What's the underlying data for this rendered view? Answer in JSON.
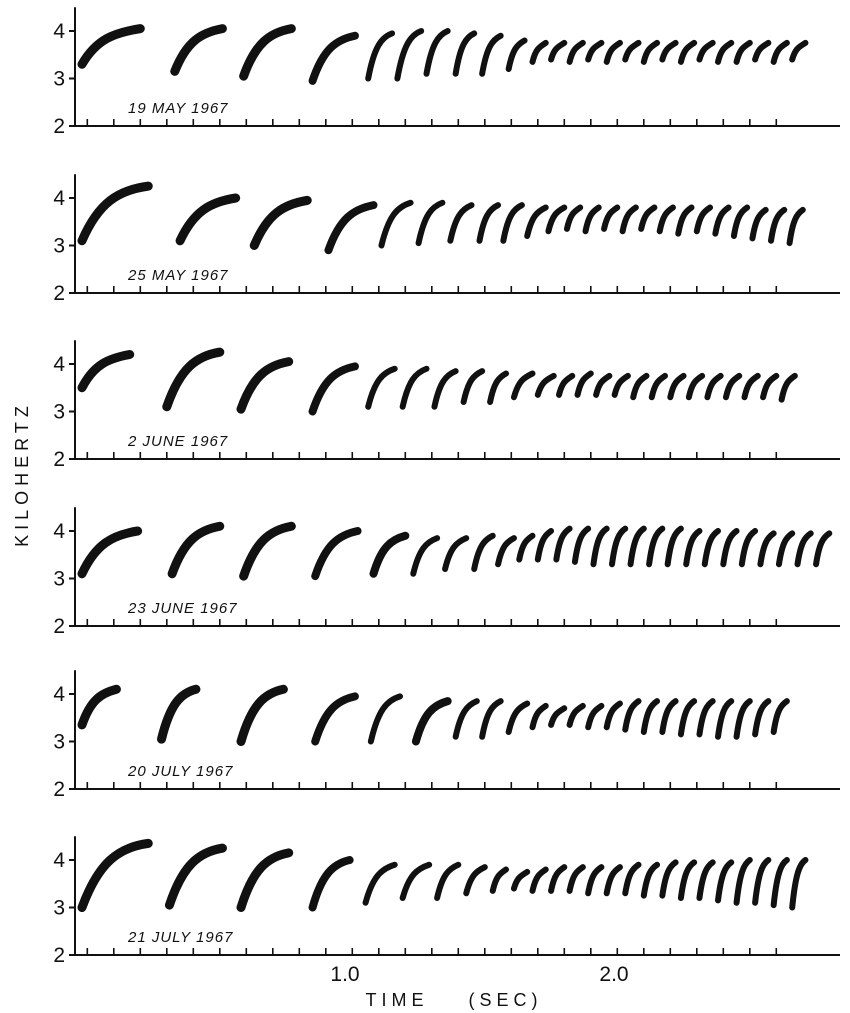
{
  "chart_data": {
    "type": "scatter",
    "description_units": {
      "x": "sec",
      "y": "kHz"
    },
    "xlabel": "TIME    (SEC)",
    "ylabel": "KILOHERTZ",
    "x_tick_labels": [
      {
        "value": 1.0,
        "label": "1.0"
      },
      {
        "value": 2.0,
        "label": "2.0"
      }
    ],
    "xlim": [
      -0.2,
      2.8
    ],
    "ylim": [
      2,
      4.5
    ],
    "y_ticks": [
      2,
      3,
      4
    ],
    "grid": false,
    "panels": [
      {
        "date": "19  MAY  1967",
        "notes": [
          [
            0.0,
            0.22,
            3.3,
            4.05
          ],
          [
            0.35,
            0.53,
            3.15,
            4.05
          ],
          [
            0.61,
            0.79,
            3.05,
            4.05
          ],
          [
            0.87,
            1.03,
            2.95,
            3.9
          ],
          [
            1.08,
            1.17,
            3.0,
            3.95
          ],
          [
            1.19,
            1.28,
            3.0,
            4.0
          ],
          [
            1.3,
            1.38,
            3.1,
            4.0
          ],
          [
            1.41,
            1.48,
            3.1,
            3.95
          ],
          [
            1.51,
            1.58,
            3.1,
            3.9
          ],
          [
            1.61,
            1.67,
            3.2,
            3.8
          ],
          [
            1.7,
            1.75,
            3.35,
            3.75
          ],
          [
            1.77,
            1.82,
            3.4,
            3.75
          ],
          [
            1.84,
            1.89,
            3.35,
            3.75
          ],
          [
            1.91,
            1.96,
            3.4,
            3.75
          ],
          [
            1.98,
            2.03,
            3.35,
            3.75
          ],
          [
            2.05,
            2.1,
            3.4,
            3.75
          ],
          [
            2.12,
            2.17,
            3.35,
            3.75
          ],
          [
            2.19,
            2.24,
            3.4,
            3.75
          ],
          [
            2.26,
            2.31,
            3.35,
            3.75
          ],
          [
            2.33,
            2.38,
            3.4,
            3.75
          ],
          [
            2.4,
            2.45,
            3.35,
            3.75
          ],
          [
            2.47,
            2.52,
            3.35,
            3.75
          ],
          [
            2.54,
            2.59,
            3.4,
            3.75
          ],
          [
            2.61,
            2.66,
            3.35,
            3.75
          ],
          [
            2.68,
            2.73,
            3.4,
            3.75
          ]
        ]
      },
      {
        "date": "25  MAY  1967",
        "notes": [
          [
            0.0,
            0.25,
            3.1,
            4.25
          ],
          [
            0.37,
            0.58,
            3.1,
            4.0
          ],
          [
            0.65,
            0.85,
            3.0,
            3.95
          ],
          [
            0.93,
            1.1,
            2.9,
            3.85
          ],
          [
            1.13,
            1.24,
            3.0,
            3.9
          ],
          [
            1.27,
            1.36,
            3.05,
            3.9
          ],
          [
            1.39,
            1.47,
            3.1,
            3.85
          ],
          [
            1.5,
            1.57,
            3.1,
            3.85
          ],
          [
            1.59,
            1.66,
            3.1,
            3.85
          ],
          [
            1.68,
            1.75,
            3.2,
            3.8
          ],
          [
            1.76,
            1.82,
            3.3,
            3.8
          ],
          [
            1.83,
            1.88,
            3.35,
            3.8
          ],
          [
            1.9,
            1.95,
            3.3,
            3.8
          ],
          [
            1.97,
            2.02,
            3.35,
            3.8
          ],
          [
            2.04,
            2.09,
            3.3,
            3.8
          ],
          [
            2.11,
            2.16,
            3.35,
            3.8
          ],
          [
            2.18,
            2.23,
            3.3,
            3.8
          ],
          [
            2.25,
            2.3,
            3.25,
            3.8
          ],
          [
            2.32,
            2.37,
            3.3,
            3.8
          ],
          [
            2.39,
            2.44,
            3.25,
            3.8
          ],
          [
            2.46,
            2.51,
            3.2,
            3.8
          ],
          [
            2.53,
            2.58,
            3.15,
            3.75
          ],
          [
            2.6,
            2.65,
            3.1,
            3.75
          ],
          [
            2.67,
            2.72,
            3.05,
            3.75
          ]
        ]
      },
      {
        "date": "2  JUNE  1967",
        "notes": [
          [
            0.0,
            0.18,
            3.5,
            4.2
          ],
          [
            0.32,
            0.52,
            3.1,
            4.25
          ],
          [
            0.6,
            0.78,
            3.05,
            4.05
          ],
          [
            0.87,
            1.03,
            3.0,
            3.95
          ],
          [
            1.08,
            1.18,
            3.1,
            3.9
          ],
          [
            1.21,
            1.3,
            3.1,
            3.9
          ],
          [
            1.33,
            1.41,
            3.1,
            3.85
          ],
          [
            1.44,
            1.51,
            3.2,
            3.85
          ],
          [
            1.54,
            1.6,
            3.2,
            3.8
          ],
          [
            1.63,
            1.7,
            3.3,
            3.8
          ],
          [
            1.72,
            1.78,
            3.35,
            3.75
          ],
          [
            1.8,
            1.85,
            3.35,
            3.75
          ],
          [
            1.87,
            1.92,
            3.35,
            3.8
          ],
          [
            1.94,
            1.99,
            3.35,
            3.75
          ],
          [
            2.01,
            2.06,
            3.35,
            3.75
          ],
          [
            2.08,
            2.13,
            3.3,
            3.75
          ],
          [
            2.15,
            2.2,
            3.3,
            3.75
          ],
          [
            2.22,
            2.27,
            3.3,
            3.75
          ],
          [
            2.29,
            2.34,
            3.3,
            3.75
          ],
          [
            2.36,
            2.41,
            3.3,
            3.75
          ],
          [
            2.43,
            2.48,
            3.3,
            3.75
          ],
          [
            2.5,
            2.55,
            3.3,
            3.75
          ],
          [
            2.57,
            2.62,
            3.3,
            3.75
          ],
          [
            2.64,
            2.69,
            3.25,
            3.75
          ]
        ]
      },
      {
        "date": "23  JUNE  1967",
        "notes": [
          [
            0.0,
            0.21,
            3.1,
            4.0
          ],
          [
            0.34,
            0.52,
            3.1,
            4.1
          ],
          [
            0.61,
            0.79,
            3.05,
            4.1
          ],
          [
            0.88,
            1.04,
            3.05,
            4.0
          ],
          [
            1.1,
            1.22,
            3.1,
            3.9
          ],
          [
            1.25,
            1.34,
            3.1,
            3.85
          ],
          [
            1.37,
            1.45,
            3.2,
            3.85
          ],
          [
            1.48,
            1.55,
            3.2,
            3.9
          ],
          [
            1.57,
            1.63,
            3.3,
            3.85
          ],
          [
            1.65,
            1.7,
            3.4,
            3.9
          ],
          [
            1.72,
            1.77,
            3.4,
            4.0
          ],
          [
            1.79,
            1.84,
            3.4,
            4.05
          ],
          [
            1.86,
            1.91,
            3.35,
            4.05
          ],
          [
            1.93,
            1.98,
            3.3,
            4.05
          ],
          [
            2.0,
            2.05,
            3.3,
            4.05
          ],
          [
            2.07,
            2.12,
            3.3,
            4.05
          ],
          [
            2.14,
            2.19,
            3.3,
            4.05
          ],
          [
            2.21,
            2.26,
            3.3,
            4.05
          ],
          [
            2.28,
            2.33,
            3.3,
            4.0
          ],
          [
            2.35,
            2.4,
            3.3,
            4.0
          ],
          [
            2.42,
            2.47,
            3.3,
            4.0
          ],
          [
            2.49,
            2.54,
            3.3,
            4.0
          ],
          [
            2.56,
            2.61,
            3.3,
            3.95
          ],
          [
            2.63,
            2.68,
            3.3,
            3.95
          ],
          [
            2.7,
            2.75,
            3.3,
            3.95
          ],
          [
            2.77,
            2.82,
            3.3,
            3.95
          ]
        ]
      },
      {
        "date": "20  JULY  1967",
        "notes": [
          [
            0.0,
            0.13,
            3.35,
            4.1
          ],
          [
            0.3,
            0.43,
            3.05,
            4.1
          ],
          [
            0.6,
            0.76,
            3.0,
            4.1
          ],
          [
            0.88,
            1.03,
            3.0,
            3.95
          ],
          [
            1.09,
            1.2,
            3.0,
            3.95
          ],
          [
            1.26,
            1.38,
            3.0,
            3.85
          ],
          [
            1.41,
            1.49,
            3.1,
            3.85
          ],
          [
            1.51,
            1.58,
            3.1,
            3.85
          ],
          [
            1.61,
            1.68,
            3.2,
            3.8
          ],
          [
            1.7,
            1.75,
            3.3,
            3.75
          ],
          [
            1.77,
            1.82,
            3.35,
            3.7
          ],
          [
            1.84,
            1.89,
            3.35,
            3.75
          ],
          [
            1.91,
            1.96,
            3.3,
            3.75
          ],
          [
            1.98,
            2.03,
            3.3,
            3.8
          ],
          [
            2.05,
            2.1,
            3.25,
            3.85
          ],
          [
            2.12,
            2.17,
            3.2,
            3.85
          ],
          [
            2.19,
            2.24,
            3.2,
            3.85
          ],
          [
            2.26,
            2.31,
            3.15,
            3.85
          ],
          [
            2.33,
            2.38,
            3.15,
            3.85
          ],
          [
            2.4,
            2.45,
            3.1,
            3.85
          ],
          [
            2.47,
            2.52,
            3.1,
            3.85
          ],
          [
            2.54,
            2.59,
            3.15,
            3.85
          ],
          [
            2.61,
            2.66,
            3.2,
            3.85
          ]
        ]
      },
      {
        "date": "21  JULY  1967",
        "notes": [
          [
            0.0,
            0.25,
            3.0,
            4.35
          ],
          [
            0.33,
            0.53,
            3.05,
            4.25
          ],
          [
            0.6,
            0.78,
            3.0,
            4.15
          ],
          [
            0.87,
            1.01,
            3.0,
            4.0
          ],
          [
            1.07,
            1.18,
            3.1,
            3.9
          ],
          [
            1.21,
            1.31,
            3.2,
            3.9
          ],
          [
            1.34,
            1.42,
            3.2,
            3.9
          ],
          [
            1.45,
            1.52,
            3.3,
            3.85
          ],
          [
            1.55,
            1.6,
            3.35,
            3.8
          ],
          [
            1.63,
            1.68,
            3.4,
            3.75
          ],
          [
            1.7,
            1.75,
            3.35,
            3.8
          ],
          [
            1.77,
            1.82,
            3.35,
            3.85
          ],
          [
            1.84,
            1.89,
            3.35,
            3.85
          ],
          [
            1.91,
            1.96,
            3.3,
            3.85
          ],
          [
            1.98,
            2.03,
            3.3,
            3.85
          ],
          [
            2.05,
            2.1,
            3.3,
            3.9
          ],
          [
            2.12,
            2.17,
            3.25,
            3.9
          ],
          [
            2.19,
            2.24,
            3.25,
            3.95
          ],
          [
            2.26,
            2.31,
            3.2,
            3.95
          ],
          [
            2.33,
            2.38,
            3.2,
            3.95
          ],
          [
            2.4,
            2.45,
            3.15,
            3.95
          ],
          [
            2.47,
            2.52,
            3.1,
            4.0
          ],
          [
            2.54,
            2.59,
            3.1,
            4.0
          ],
          [
            2.61,
            2.66,
            3.05,
            4.0
          ],
          [
            2.68,
            2.73,
            3.0,
            4.0
          ]
        ]
      }
    ]
  }
}
